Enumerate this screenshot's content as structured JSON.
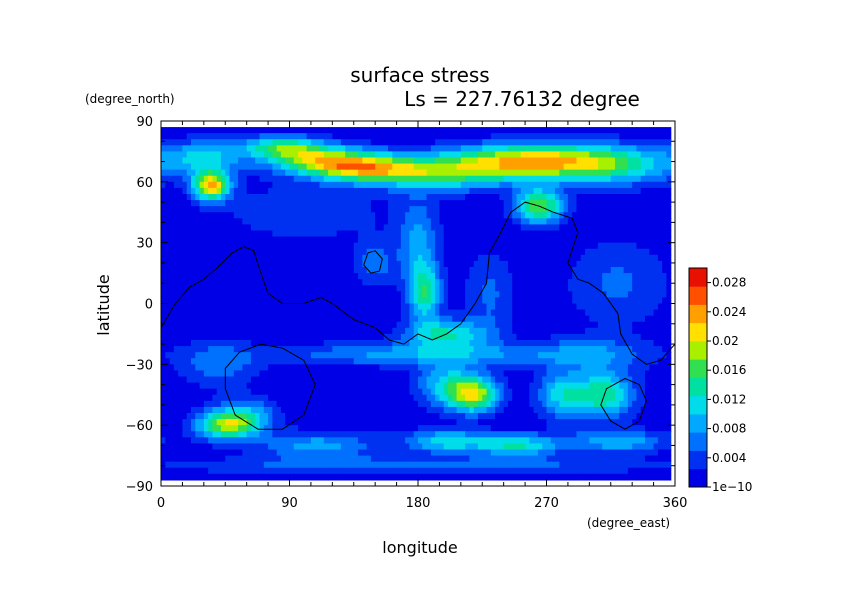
{
  "chart_data": {
    "type": "heatmap",
    "title": "surface stress",
    "subtitle": "Ls = 227.76132 degree",
    "xlabel": "longitude",
    "ylabel": "latitude",
    "x_unit": "(degree_east)",
    "y_unit": "(degree_north)",
    "xlim": [
      0,
      360
    ],
    "ylim": [
      -90,
      90
    ],
    "x_ticks": [
      "0",
      "90",
      "180",
      "270",
      "360"
    ],
    "y_ticks": [
      "90",
      "60",
      "30",
      "0",
      "−30",
      "−60",
      "−90"
    ],
    "x_tick_values": [
      0,
      90,
      180,
      270,
      360
    ],
    "y_tick_values": [
      90,
      60,
      30,
      0,
      -30,
      -60,
      -90
    ],
    "colorbar": {
      "min": 0,
      "max": 0.03,
      "tick_labels": [
        "1e−10",
        "0.004",
        "0.008",
        "0.012",
        "0.016",
        "0.02",
        "0.024",
        "0.028"
      ],
      "tick_values": [
        0,
        0.004,
        0.008,
        0.012,
        0.016,
        0.02,
        0.024,
        0.028
      ],
      "colors": [
        "#0000e6",
        "#0030f0",
        "#0070ff",
        "#00a8ff",
        "#00dcea",
        "#00e0a0",
        "#30e050",
        "#a8f000",
        "#ffe000",
        "#ffa000",
        "#ff5000",
        "#e81000"
      ]
    },
    "data_lat_range": [
      -87,
      87
    ],
    "features": [
      {
        "lon": 115,
        "lat": 70,
        "value": 0.018,
        "sx": 25,
        "sy": 5
      },
      {
        "lon": 150,
        "lat": 66,
        "value": 0.016,
        "sx": 25,
        "sy": 5
      },
      {
        "lon": 260,
        "lat": 70,
        "value": 0.022,
        "sx": 40,
        "sy": 6
      },
      {
        "lon": 85,
        "lat": 77,
        "value": 0.014,
        "sx": 20,
        "sy": 4
      },
      {
        "lon": 200,
        "lat": 64,
        "value": 0.012,
        "sx": 30,
        "sy": 6
      },
      {
        "lon": 320,
        "lat": 68,
        "value": 0.01,
        "sx": 30,
        "sy": 7
      },
      {
        "lon": 30,
        "lat": 72,
        "value": 0.01,
        "sx": 20,
        "sy": 6
      },
      {
        "lon": 35,
        "lat": 58,
        "value": 0.022,
        "sx": 9,
        "sy": 5
      },
      {
        "lon": 265,
        "lat": 48,
        "value": 0.017,
        "sx": 12,
        "sy": 6
      },
      {
        "lon": 180,
        "lat": 30,
        "value": 0.008,
        "sx": 10,
        "sy": 15
      },
      {
        "lon": 185,
        "lat": 5,
        "value": 0.013,
        "sx": 8,
        "sy": 10
      },
      {
        "lon": 200,
        "lat": -15,
        "value": 0.012,
        "sx": 20,
        "sy": 5
      },
      {
        "lon": 150,
        "lat": 20,
        "value": 0.006,
        "sx": 10,
        "sy": 8
      },
      {
        "lon": 230,
        "lat": 5,
        "value": 0.005,
        "sx": 12,
        "sy": 15
      },
      {
        "lon": 100,
        "lat": 45,
        "value": 0.004,
        "sx": 40,
        "sy": 10
      },
      {
        "lon": 320,
        "lat": 10,
        "value": 0.005,
        "sx": 25,
        "sy": 15
      },
      {
        "lon": 40,
        "lat": -30,
        "value": 0.006,
        "sx": 20,
        "sy": 8
      },
      {
        "lon": 45,
        "lat": -60,
        "value": 0.016,
        "sx": 15,
        "sy": 5
      },
      {
        "lon": 60,
        "lat": -55,
        "value": 0.008,
        "sx": 15,
        "sy": 6
      },
      {
        "lon": 220,
        "lat": -45,
        "value": 0.018,
        "sx": 12,
        "sy": 6
      },
      {
        "lon": 200,
        "lat": -40,
        "value": 0.01,
        "sx": 15,
        "sy": 8
      },
      {
        "lon": 310,
        "lat": -45,
        "value": 0.014,
        "sx": 15,
        "sy": 8
      },
      {
        "lon": 280,
        "lat": -45,
        "value": 0.01,
        "sx": 12,
        "sy": 8
      },
      {
        "lon": 250,
        "lat": -70,
        "value": 0.012,
        "sx": 20,
        "sy": 4
      },
      {
        "lon": 200,
        "lat": -68,
        "value": 0.011,
        "sx": 20,
        "sy": 4
      },
      {
        "lon": 320,
        "lat": -68,
        "value": 0.009,
        "sx": 25,
        "sy": 4
      },
      {
        "lon": 110,
        "lat": -70,
        "value": 0.008,
        "sx": 30,
        "sy": 5
      },
      {
        "lon": 180,
        "lat": -25,
        "value": 0.008,
        "sx": 70,
        "sy": 4
      },
      {
        "lon": 180,
        "lat": -80,
        "value": 0.006,
        "sx": 120,
        "sy": 3
      },
      {
        "lon": 300,
        "lat": -25,
        "value": 0.006,
        "sx": 30,
        "sy": 6
      }
    ],
    "contours": [
      [
        [
          0,
          -12
        ],
        [
          10,
          0
        ],
        [
          20,
          8
        ],
        [
          30,
          12
        ],
        [
          40,
          18
        ],
        [
          50,
          25
        ],
        [
          58,
          28
        ],
        [
          65,
          26
        ],
        [
          70,
          15
        ],
        [
          75,
          5
        ],
        [
          85,
          0
        ],
        [
          100,
          0
        ],
        [
          112,
          3
        ],
        [
          120,
          0
        ],
        [
          135,
          -8
        ],
        [
          150,
          -12
        ],
        [
          160,
          -18
        ],
        [
          170,
          -20
        ],
        [
          180,
          -15
        ],
        [
          190,
          -18
        ],
        [
          200,
          -15
        ],
        [
          210,
          -10
        ],
        [
          220,
          0
        ],
        [
          228,
          10
        ],
        [
          230,
          25
        ],
        [
          238,
          35
        ],
        [
          245,
          45
        ],
        [
          255,
          50
        ],
        [
          265,
          48
        ],
        [
          275,
          45
        ],
        [
          288,
          42
        ],
        [
          292,
          35
        ],
        [
          285,
          20
        ],
        [
          292,
          12
        ],
        [
          300,
          10
        ],
        [
          310,
          5
        ],
        [
          320,
          -5
        ],
        [
          322,
          -15
        ],
        [
          330,
          -25
        ],
        [
          340,
          -30
        ],
        [
          350,
          -28
        ],
        [
          360,
          -20
        ]
      ],
      [
        [
          145,
          25
        ],
        [
          150,
          26
        ],
        [
          155,
          22
        ],
        [
          153,
          16
        ],
        [
          147,
          15
        ],
        [
          142,
          19
        ],
        [
          145,
          25
        ]
      ],
      [
        [
          55,
          -24
        ],
        [
          70,
          -20
        ],
        [
          85,
          -22
        ],
        [
          100,
          -28
        ],
        [
          108,
          -40
        ],
        [
          100,
          -55
        ],
        [
          85,
          -62
        ],
        [
          68,
          -62
        ],
        [
          52,
          -55
        ],
        [
          45,
          -42
        ],
        [
          45,
          -32
        ],
        [
          55,
          -24
        ]
      ],
      [
        [
          325,
          -37
        ],
        [
          335,
          -40
        ],
        [
          340,
          -48
        ],
        [
          335,
          -58
        ],
        [
          325,
          -62
        ],
        [
          315,
          -58
        ],
        [
          308,
          -50
        ],
        [
          312,
          -42
        ],
        [
          325,
          -37
        ]
      ]
    ]
  }
}
